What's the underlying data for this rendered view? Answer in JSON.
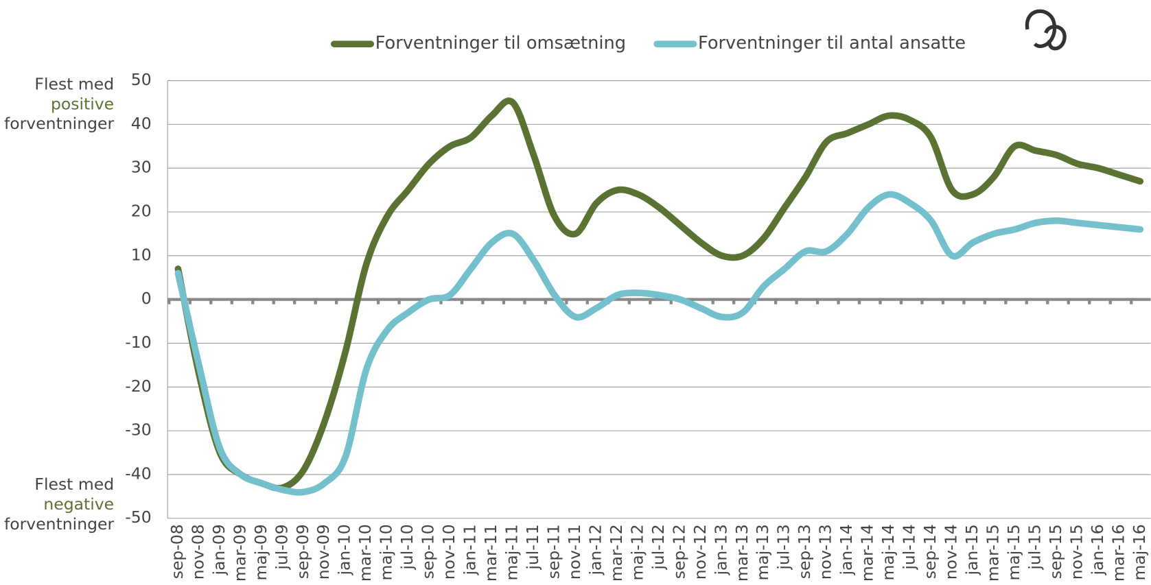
{
  "chart_data": {
    "type": "line",
    "categories": [
      "sep-08",
      "nov-08",
      "jan-09",
      "mar-09",
      "maj-09",
      "jul-09",
      "sep-09",
      "nov-09",
      "jan-10",
      "mar-10",
      "maj-10",
      "jul-10",
      "sep-10",
      "nov-10",
      "jan-11",
      "mar-11",
      "maj-11",
      "jul-11",
      "sep-11",
      "nov-11",
      "jan-12",
      "mar-12",
      "maj-12",
      "jul-12",
      "sep-12",
      "nov-12",
      "jan-13",
      "mar-13",
      "maj-13",
      "jul-13",
      "sep-13",
      "nov-13",
      "jan-14",
      "mar-14",
      "maj-14",
      "jul-14",
      "sep-14",
      "nov-14",
      "jan-15",
      "mar-15",
      "maj-15",
      "jul-15",
      "sep-15",
      "nov-15",
      "jan-16",
      "mar-16",
      "maj-16"
    ],
    "series": [
      {
        "name": "Forventninger til omsætning",
        "color": "#5a7332",
        "values": [
          7,
          -17,
          -35,
          -40,
          -42,
          -43,
          -39,
          -28,
          -12,
          8,
          19,
          25,
          31,
          35,
          37,
          42,
          45,
          33,
          19,
          15,
          22,
          25,
          24,
          21,
          17,
          13,
          10,
          10,
          14,
          21,
          28,
          36,
          38,
          40,
          42,
          41,
          37,
          25,
          24,
          28,
          35,
          34,
          33,
          31,
          30,
          28.5,
          27
        ]
      },
      {
        "name": "Forventninger til antal ansatte",
        "color": "#74c0cc",
        "values": [
          6,
          -15,
          -34,
          -40,
          -42,
          -43.5,
          -44,
          -42,
          -36,
          -16,
          -7,
          -3,
          0,
          1,
          7,
          13,
          15,
          9,
          1,
          -4,
          -2,
          1,
          1.5,
          1,
          0,
          -2,
          -4,
          -3,
          3,
          7,
          11,
          11,
          15,
          21,
          24,
          22,
          18,
          10,
          13,
          15,
          16,
          17.5,
          18,
          17.5,
          17,
          16.5,
          16
        ]
      }
    ],
    "ylim": [
      -50,
      50
    ],
    "yticks": [
      -50,
      -40,
      -30,
      -20,
      -10,
      0,
      10,
      20,
      30,
      40,
      50
    ],
    "grid": true,
    "annotations": {
      "top": [
        "Flest med",
        "positive",
        "forventninger"
      ],
      "bottom": [
        "Flest med",
        "negative",
        "forventninger"
      ]
    },
    "logo": [
      "Region",
      "Syddanmark"
    ]
  }
}
